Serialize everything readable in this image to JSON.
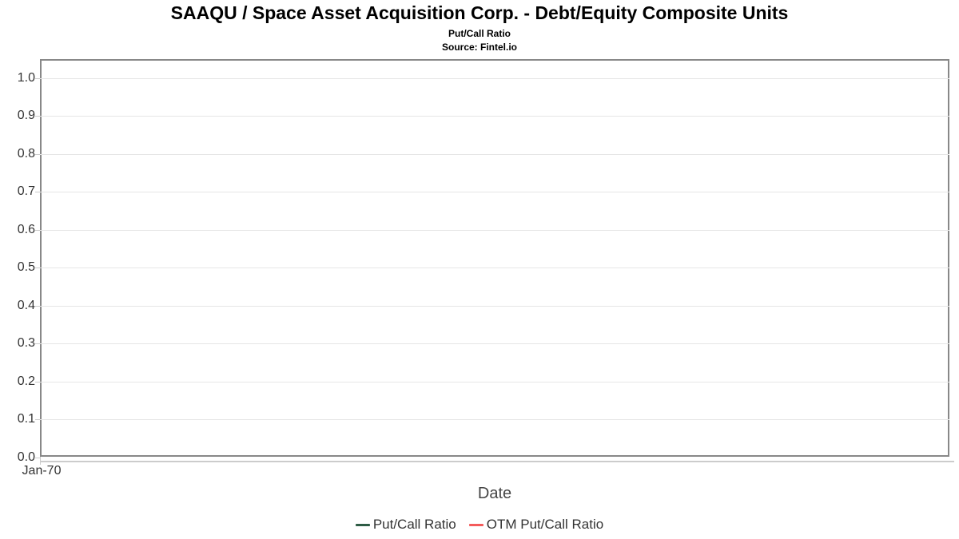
{
  "chart_data": {
    "type": "line",
    "title": "SAAQU / Space Asset Acquisition Corp. - Debt/Equity Composite Units",
    "subtitle": "Put/Call Ratio",
    "source": "Source: Fintel.io",
    "xlabel": "Date",
    "ylabel": "",
    "x_tick_labels": [
      "Jan-70"
    ],
    "yticks": [
      0.0,
      0.1,
      0.2,
      0.3,
      0.4,
      0.5,
      0.6,
      0.7,
      0.8,
      0.9,
      1.0
    ],
    "ytick_labels": [
      "0.0",
      "0.1",
      "0.2",
      "0.3",
      "0.4",
      "0.5",
      "0.6",
      "0.7",
      "0.8",
      "0.9",
      "1.0"
    ],
    "ylim": [
      0.0,
      1.05
    ],
    "grid": true,
    "legend_position": "bottom",
    "plot_is_empty": true,
    "series": [
      {
        "name": "Put/Call Ratio",
        "color": "#2e5c45",
        "values": []
      },
      {
        "name": "OTM Put/Call Ratio",
        "color": "#f45b5b",
        "values": []
      }
    ],
    "colors": {
      "plot_border": "#888888",
      "gridline": "#e6e6e6",
      "axis_line": "#cccccc",
      "tick_text": "#333333",
      "title_text": "#000000"
    }
  }
}
